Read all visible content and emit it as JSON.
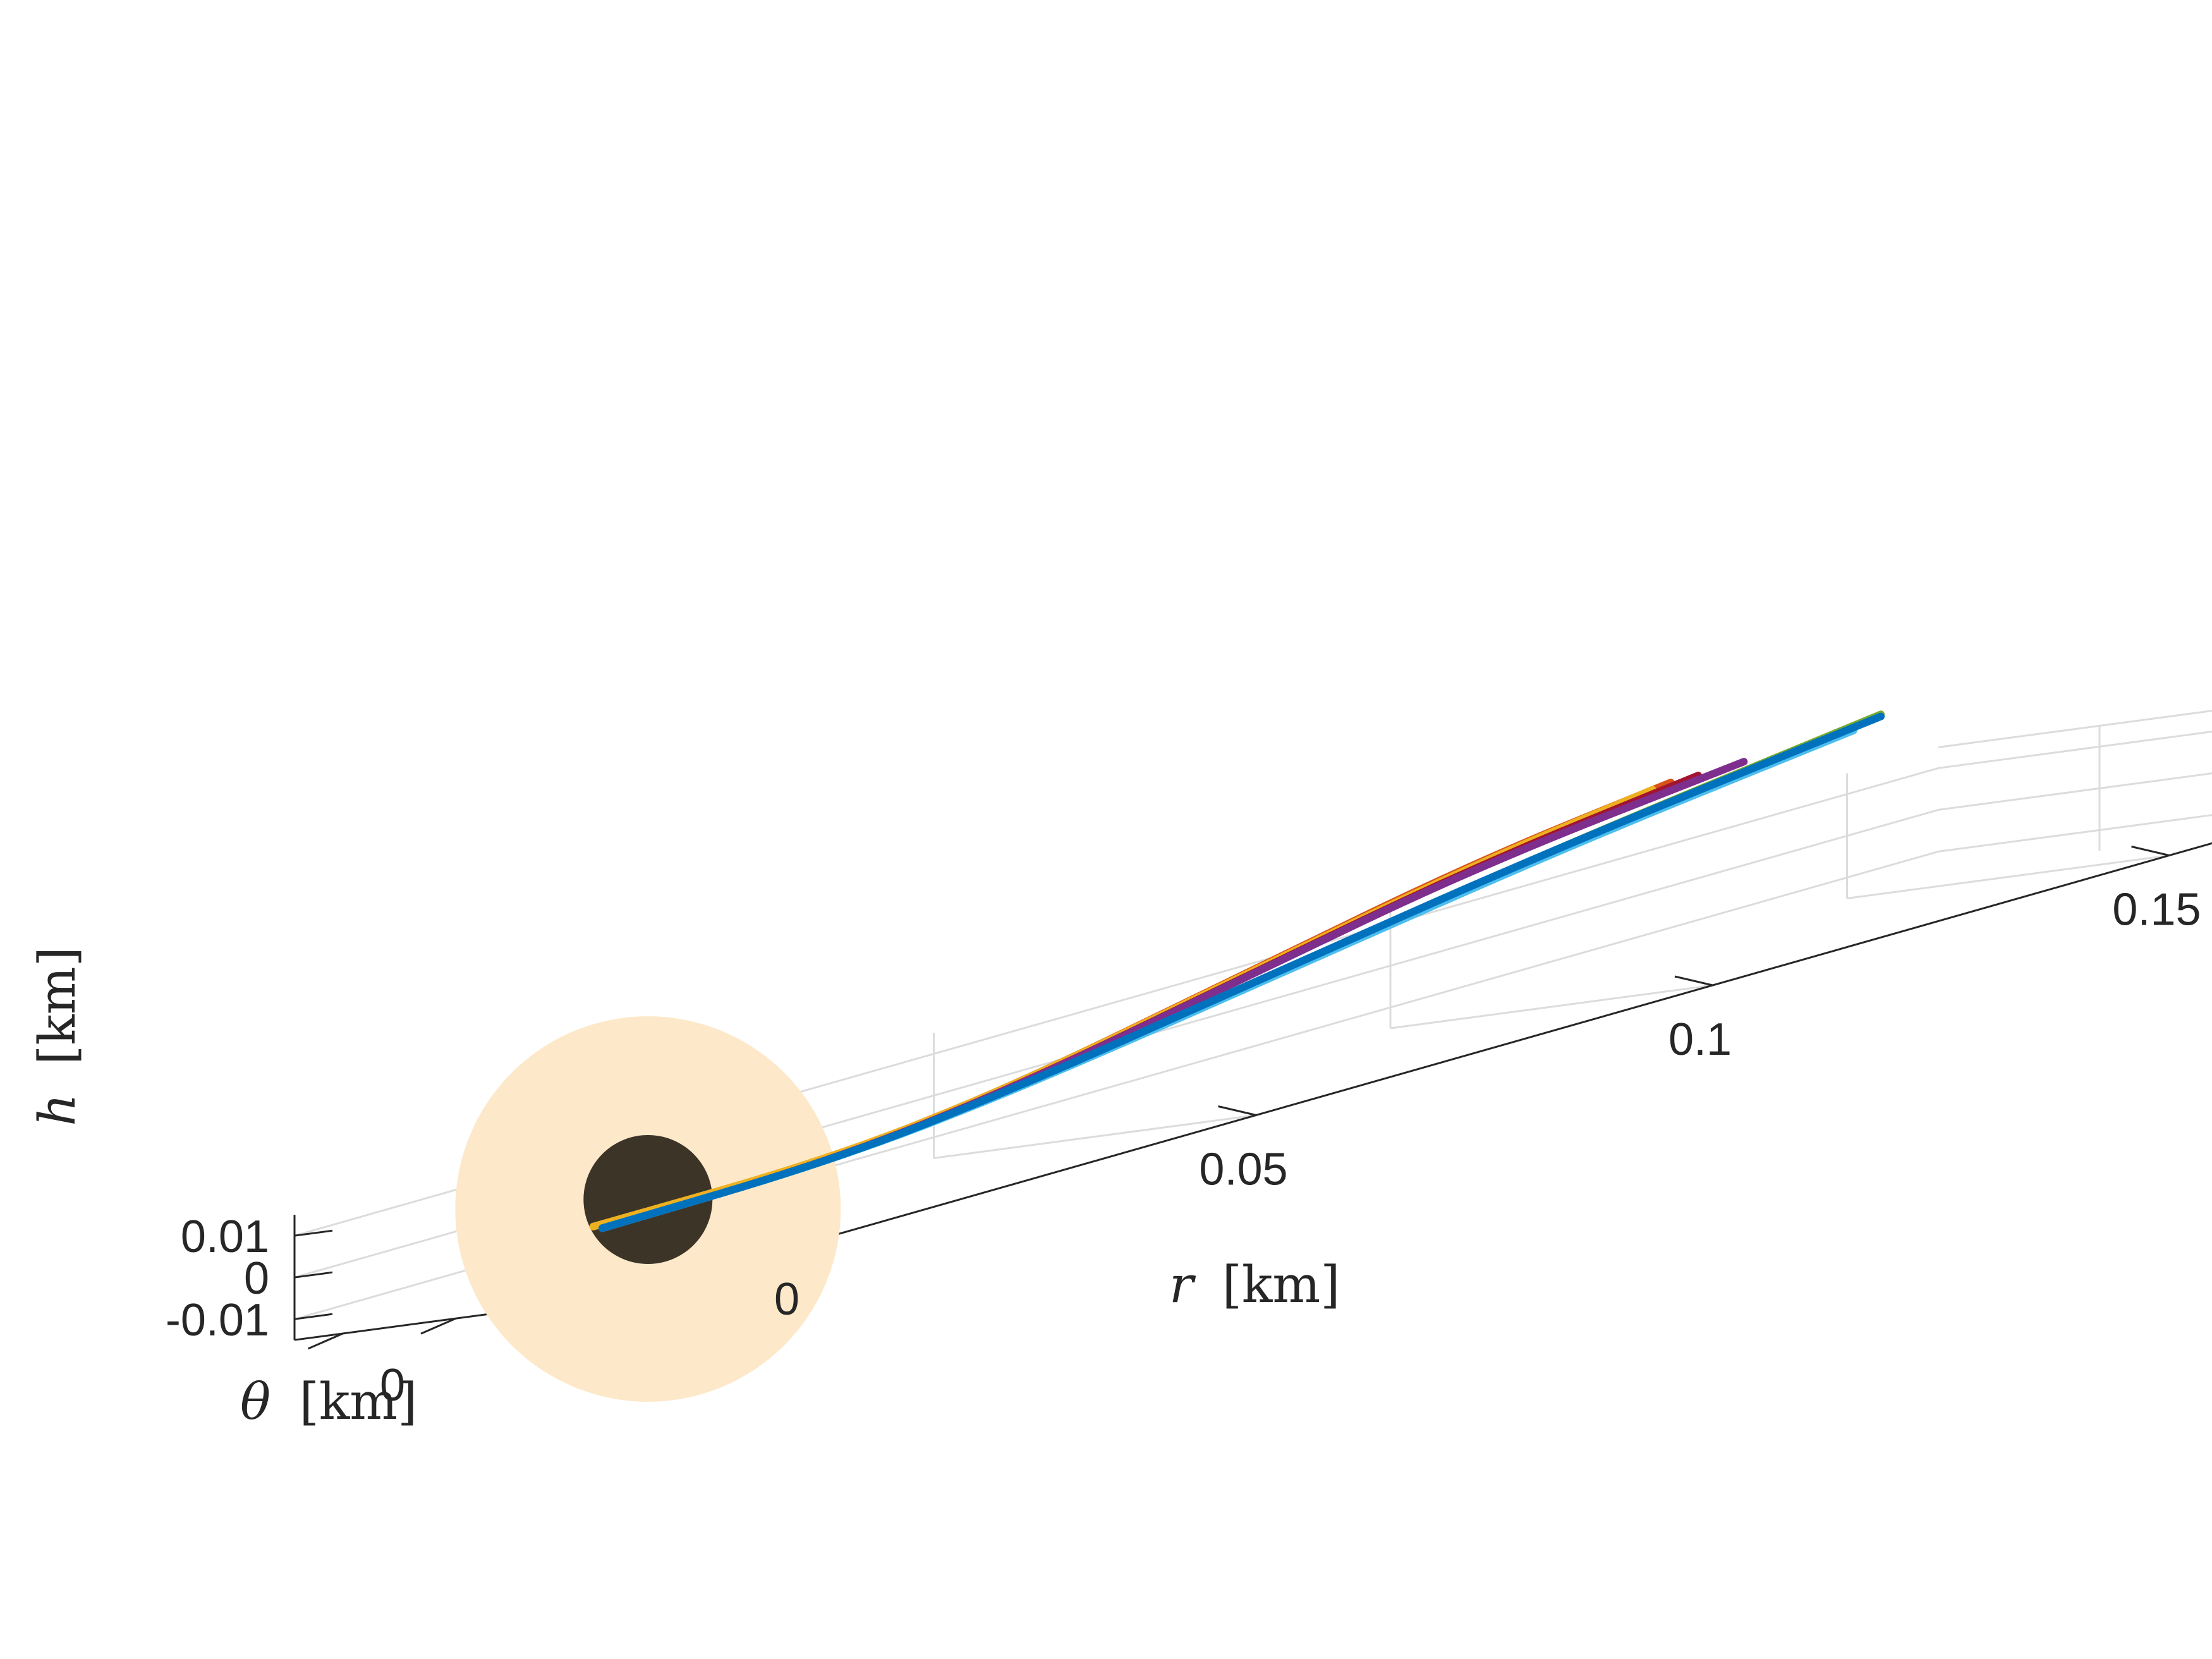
{
  "chart_data": {
    "type": "line",
    "view": "3d",
    "title": "",
    "xlabel_var": "r",
    "xlabel_unit": "[km]",
    "ylabel_var": "θ",
    "ylabel_unit": "[km]",
    "zlabel_var": "h",
    "zlabel_unit": "[km]",
    "x_ticks": [
      "0",
      "0.05",
      "0.1",
      "0.15"
    ],
    "y_ticks": [
      "0"
    ],
    "z_ticks": [
      "0.01",
      "0",
      "-0.01"
    ],
    "x_range": [
      -0.02,
      0.16
    ],
    "z_range": [
      -0.015,
      0.015
    ],
    "grid": true,
    "legend": "none",
    "objects": [
      {
        "kind": "sphere",
        "role": "target body",
        "color": "#3d3428",
        "center_r": -0.0,
        "center_h": 0.0
      },
      {
        "kind": "sphere",
        "role": "keep-out zone",
        "color": "#fde9c9",
        "center_r": -0.0,
        "center_h": 0.0
      }
    ],
    "series": [
      {
        "color": "#d95319",
        "points": [
          [
            -0.005,
            -0.003
          ],
          [
            0.02,
            -0.002
          ],
          [
            0.04,
            0.003
          ],
          [
            0.065,
            0.014
          ],
          [
            0.09,
            0.025
          ],
          [
            0.112,
            0.031
          ]
        ]
      },
      {
        "color": "#edb120",
        "points": [
          [
            -0.006,
            -0.002
          ],
          [
            0.02,
            -0.002
          ],
          [
            0.04,
            0.003
          ],
          [
            0.065,
            0.0138
          ],
          [
            0.09,
            0.0245
          ],
          [
            0.11,
            0.0305
          ]
        ]
      },
      {
        "color": "#a2142f",
        "points": [
          [
            -0.005,
            -0.003
          ],
          [
            0.02,
            -0.0025
          ],
          [
            0.04,
            0.0025
          ],
          [
            0.065,
            0.0132
          ],
          [
            0.09,
            0.024
          ],
          [
            0.115,
            0.0308
          ]
        ]
      },
      {
        "color": "#7e2f8e",
        "points": [
          [
            -0.005,
            -0.003
          ],
          [
            0.02,
            -0.0025
          ],
          [
            0.04,
            0.0025
          ],
          [
            0.065,
            0.013
          ],
          [
            0.09,
            0.0238
          ],
          [
            0.12,
            0.031
          ]
        ]
      },
      {
        "color": "#77ac30",
        "points": [
          [
            -0.005,
            -0.003
          ],
          [
            0.02,
            -0.0025
          ],
          [
            0.04,
            0.002
          ],
          [
            0.07,
            0.0125
          ],
          [
            0.1,
            0.0232
          ],
          [
            0.135,
            0.033
          ]
        ]
      },
      {
        "color": "#4dbeee",
        "points": [
          [
            -0.005,
            -0.003
          ],
          [
            0.02,
            -0.0025
          ],
          [
            0.04,
            0.0018
          ],
          [
            0.07,
            0.012
          ],
          [
            0.1,
            0.0225
          ],
          [
            0.132,
            0.031
          ]
        ]
      },
      {
        "color": "#0072bd",
        "points": [
          [
            -0.005,
            -0.003
          ],
          [
            0.02,
            -0.0025
          ],
          [
            0.04,
            0.0022
          ],
          [
            0.07,
            0.0128
          ],
          [
            0.1,
            0.0232
          ],
          [
            0.135,
            0.0325
          ]
        ]
      }
    ]
  }
}
